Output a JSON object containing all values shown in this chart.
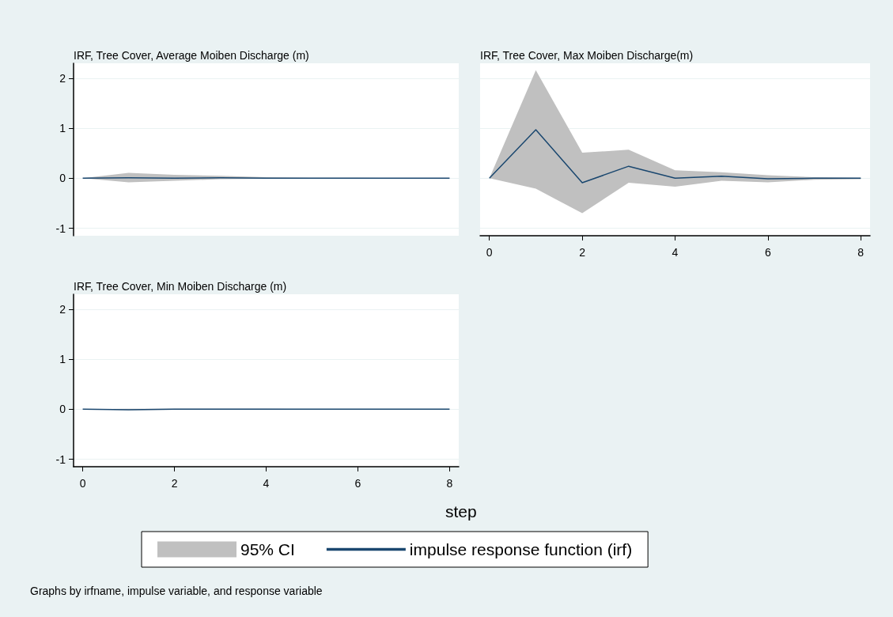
{
  "chart_data": [
    {
      "type": "line",
      "title": "IRF, Tree Cover, Average Moiben Discharge (m)",
      "x": [
        0,
        1,
        2,
        3,
        4,
        5,
        6,
        7,
        8
      ],
      "xlim": [
        -0.2,
        8.2
      ],
      "xticks": [
        0,
        2,
        4,
        6,
        8
      ],
      "ylim": [
        -1.15,
        2.3
      ],
      "yticks": [
        -1,
        0,
        1,
        2
      ],
      "grid": "y",
      "tick_labels": "y",
      "legend": false,
      "marker": "none",
      "series": [
        {
          "color": "#1a476f",
          "values": [
            0,
            0.01,
            0,
            0.01,
            0,
            0,
            0,
            0,
            0
          ],
          "lower": [
            0,
            -0.08,
            -0.05,
            -0.02,
            -0.01,
            -0.01,
            0,
            0,
            0
          ],
          "upper": [
            0,
            0.11,
            0.07,
            0.05,
            0.02,
            0.01,
            0.01,
            0,
            0
          ]
        }
      ]
    },
    {
      "type": "line",
      "title": "IRF, Tree Cover, Max Moiben Discharge(m)",
      "x": [
        0,
        1,
        2,
        3,
        4,
        5,
        6,
        7,
        8
      ],
      "xlim": [
        -0.2,
        8.2
      ],
      "xticks": [
        0,
        2,
        4,
        6,
        8
      ],
      "ylim": [
        -1.15,
        2.3
      ],
      "yticks": [
        -1,
        0,
        1,
        2
      ],
      "grid": "y",
      "tick_labels": "x",
      "legend": false,
      "marker": "none",
      "series": [
        {
          "color": "#1a476f",
          "values": [
            0,
            0.97,
            -0.09,
            0.24,
            0,
            0.04,
            -0.01,
            0,
            0
          ],
          "lower": [
            0,
            -0.21,
            -0.7,
            -0.09,
            -0.17,
            -0.05,
            -0.08,
            -0.03,
            -0.02
          ],
          "upper": [
            0,
            2.16,
            0.51,
            0.57,
            0.16,
            0.12,
            0.06,
            0.02,
            0.01
          ]
        }
      ]
    },
    {
      "type": "line",
      "title": "IRF, Tree Cover, Min Moiben Discharge (m)",
      "xlabel": "step",
      "x": [
        0,
        1,
        2,
        3,
        4,
        5,
        6,
        7,
        8
      ],
      "xlim": [
        -0.2,
        8.2
      ],
      "xticks": [
        0,
        2,
        4,
        6,
        8
      ],
      "ylim": [
        -1.15,
        2.3
      ],
      "yticks": [
        -1,
        0,
        1,
        2
      ],
      "grid": "y",
      "legend": "bottom",
      "marker": "none",
      "annotations": [
        "95% CI",
        "Graphs by irfname, impulse variable, and response variable"
      ],
      "series": [
        {
          "name": "impulse response function (irf)",
          "color": "#1a476f",
          "values": [
            0,
            -0.01,
            0,
            0,
            0,
            0,
            0,
            0,
            0
          ],
          "lower": [
            0,
            -0.02,
            -0.01,
            -0.01,
            0,
            0,
            0,
            0,
            0
          ],
          "upper": [
            0,
            0.01,
            0.01,
            0.01,
            0.01,
            0,
            0,
            0,
            0
          ]
        }
      ]
    }
  ]
}
